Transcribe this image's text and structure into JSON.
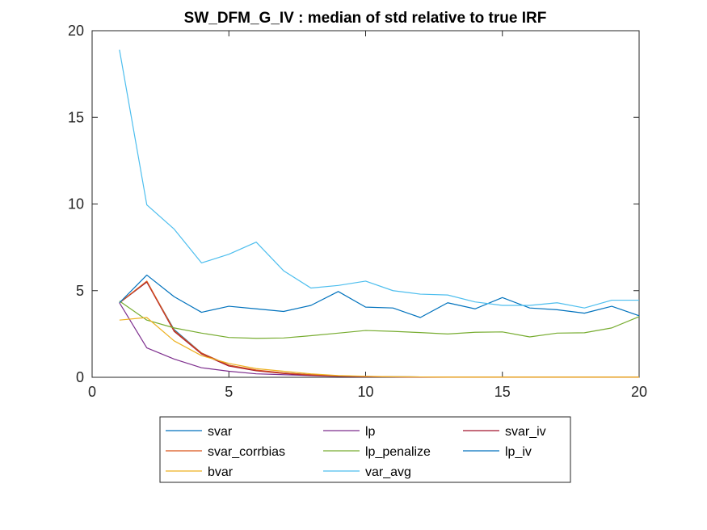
{
  "chart_data": {
    "type": "line",
    "title": "SW_DFM_G_IV : median of std relative to true IRF",
    "xlabel": "",
    "ylabel": "",
    "xlim": [
      0,
      20
    ],
    "ylim": [
      0,
      20
    ],
    "xticks": [
      0,
      5,
      10,
      15,
      20
    ],
    "yticks": [
      0,
      5,
      10,
      15,
      20
    ],
    "grid": false,
    "legend_position": "bottom-outside",
    "legend_columns": 3,
    "x": [
      1,
      2,
      3,
      4,
      5,
      6,
      7,
      8,
      9,
      10,
      11,
      12,
      13,
      14,
      15,
      16,
      17,
      18,
      19,
      20
    ],
    "series": [
      {
        "name": "svar",
        "color": "#0072BD",
        "values": [
          4.3,
          5.5,
          2.75,
          1.4,
          0.7,
          0.4,
          0.25,
          0.15,
          0.08,
          0.05,
          0.03,
          0.02,
          0.01,
          0.01,
          0.01,
          0.01,
          0.01,
          0.01,
          0.01,
          0.01
        ]
      },
      {
        "name": "lp",
        "color": "#7E2F8E",
        "values": [
          4.3,
          1.7,
          1.05,
          0.55,
          0.35,
          0.2,
          0.15,
          0.1,
          0.05,
          0.03,
          0.02,
          0.01,
          0.01,
          0.01,
          0.01,
          0.01,
          0.01,
          0.01,
          0.01,
          0.01
        ]
      },
      {
        "name": "svar_iv",
        "color": "#A2142F",
        "values": [
          4.3,
          5.5,
          2.65,
          1.35,
          0.65,
          0.38,
          0.22,
          0.12,
          0.07,
          0.04,
          0.02,
          0.01,
          0.01,
          0.01,
          0.01,
          0.01,
          0.01,
          0.01,
          0.01,
          0.01
        ]
      },
      {
        "name": "svar_corrbias",
        "color": "#D95319",
        "values": [
          4.3,
          5.55,
          2.7,
          1.4,
          0.7,
          0.42,
          0.25,
          0.15,
          0.08,
          0.05,
          0.03,
          0.02,
          0.01,
          0.01,
          0.01,
          0.01,
          0.01,
          0.01,
          0.01,
          0.01
        ]
      },
      {
        "name": "lp_penalize",
        "color": "#77AC30",
        "values": [
          4.4,
          3.3,
          2.85,
          2.55,
          2.3,
          2.25,
          2.27,
          2.4,
          2.55,
          2.7,
          2.65,
          2.58,
          2.5,
          2.6,
          2.62,
          2.33,
          2.55,
          2.57,
          2.85,
          3.5
        ]
      },
      {
        "name": "lp_iv",
        "color": "#0072BD",
        "values": [
          4.3,
          5.9,
          4.65,
          3.75,
          4.1,
          3.95,
          3.8,
          4.15,
          4.95,
          4.05,
          4.0,
          3.45,
          4.3,
          3.95,
          4.6,
          4.0,
          3.9,
          3.7,
          4.1,
          3.55
        ]
      },
      {
        "name": "bvar",
        "color": "#EDB120",
        "values": [
          3.3,
          3.45,
          2.1,
          1.25,
          0.8,
          0.5,
          0.35,
          0.2,
          0.1,
          0.06,
          0.03,
          0.02,
          0.01,
          0.01,
          0.01,
          0.01,
          0.01,
          0.01,
          0.01,
          0.01
        ]
      },
      {
        "name": "var_avg",
        "color": "#4DBEEE",
        "values": [
          18.9,
          9.95,
          8.55,
          6.6,
          7.1,
          7.8,
          6.15,
          5.15,
          5.3,
          5.55,
          5.0,
          4.8,
          4.75,
          4.35,
          4.15,
          4.15,
          4.3,
          4.0,
          4.45,
          4.45
        ]
      }
    ]
  }
}
